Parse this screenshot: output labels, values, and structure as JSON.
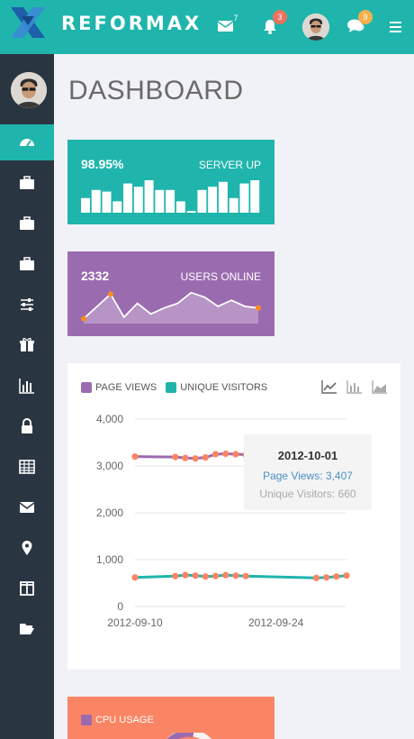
{
  "topbar": {
    "brand": "REFORMAX",
    "mail_count": "7",
    "bell_count": "3",
    "chat_count": "9",
    "colors": {
      "bar": "#1fb5ac",
      "bell_badge": "#e9735f",
      "chat_badge": "#f5b04c"
    }
  },
  "sidebar": {
    "items": [
      {
        "icon": "dashboard-icon",
        "active": true
      },
      {
        "icon": "briefcase-icon"
      },
      {
        "icon": "briefcase-icon"
      },
      {
        "icon": "briefcase-icon"
      },
      {
        "icon": "sliders-icon"
      },
      {
        "icon": "gift-icon"
      },
      {
        "icon": "bar-chart-icon"
      },
      {
        "icon": "lock-icon"
      },
      {
        "icon": "table-icon"
      },
      {
        "icon": "envelope-icon"
      },
      {
        "icon": "map-marker-icon"
      },
      {
        "icon": "columns-icon"
      },
      {
        "icon": "folder-open-icon"
      }
    ]
  },
  "page": {
    "title": "DASHBOARD"
  },
  "server_card": {
    "value": "98.95%",
    "label": "SERVER UP",
    "bars": [
      0.45,
      0.7,
      0.65,
      0.35,
      0.9,
      0.8,
      1.0,
      0.7,
      0.7,
      0.35,
      0.05,
      0.7,
      0.8,
      0.95,
      0.45,
      0.9,
      1.0
    ]
  },
  "users_card": {
    "value": "2332",
    "label": "USERS ONLINE",
    "spark": [
      0.1,
      0.5,
      0.9,
      0.15,
      0.6,
      0.25,
      0.45,
      0.6,
      0.95,
      0.8,
      0.5,
      0.7,
      0.5,
      0.45
    ]
  },
  "traffic_chart": {
    "legend": [
      {
        "name": "PAGE VIEWS",
        "color": "#9b6bb0"
      },
      {
        "name": "UNIQUE VISITORS",
        "color": "#1fb5ac"
      }
    ],
    "toggles": [
      "line-chart-icon",
      "bar-chart-icon",
      "area-chart-icon"
    ],
    "tooltip": {
      "date": "2012-10-01",
      "page_views": "Page Views: 3,407",
      "unique_visitors": "Unique Visitors: 660"
    }
  },
  "chart_data": {
    "type": "line",
    "title": "",
    "xlabel": "",
    "ylabel": "",
    "ylim": [
      0,
      4000
    ],
    "yticks": [
      "4,000",
      "3,000",
      "2,000",
      "1,000",
      "0"
    ],
    "xticks": [
      "2012-09-10",
      "2012-09-24"
    ],
    "x": [
      "2012-09-10",
      "2012-09-14",
      "2012-09-15",
      "2012-09-16",
      "2012-09-17",
      "2012-09-18",
      "2012-09-19",
      "2012-09-20",
      "2012-09-21",
      "2012-09-28",
      "2012-09-29",
      "2012-09-30",
      "2012-10-01"
    ],
    "series": [
      {
        "name": "PAGE VIEWS",
        "color": "#9b6bb0",
        "values": [
          3200,
          3190,
          3170,
          3160,
          3180,
          3250,
          3260,
          3250,
          3240,
          3350,
          3360,
          3380,
          3407
        ]
      },
      {
        "name": "UNIQUE VISITORS",
        "color": "#1fb5ac",
        "values": [
          620,
          650,
          670,
          660,
          640,
          650,
          670,
          660,
          650,
          610,
          620,
          640,
          660
        ]
      }
    ],
    "grid": true,
    "legend": "top-left"
  },
  "cpu_card": {
    "legend_label": "CPU USAGE",
    "legend_color": "#9b6bb0"
  }
}
